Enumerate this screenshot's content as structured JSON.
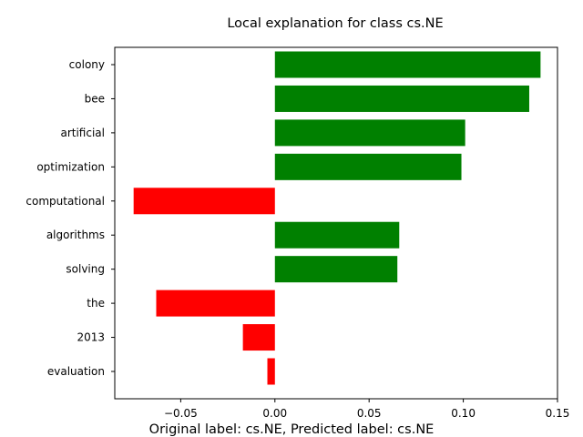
{
  "chart_data": {
    "type": "bar",
    "orientation": "horizontal",
    "title": "Local explanation for class cs.NE",
    "caption": "Original label: cs.NE, Predicted label: cs.NE",
    "xlabel": "",
    "ylabel": "",
    "categories": [
      "colony",
      "bee",
      "artificial",
      "optimization",
      "computational",
      "algorithms",
      "solving",
      "the",
      "2013",
      "evaluation"
    ],
    "values": [
      0.141,
      0.135,
      0.101,
      0.099,
      -0.075,
      0.066,
      0.065,
      -0.063,
      -0.017,
      -0.004
    ],
    "xlim": [
      -0.085,
      0.15
    ],
    "xticks": [
      -0.05,
      0.0,
      0.05,
      0.1,
      0.15
    ],
    "xtick_labels": [
      "−0.05",
      "0.00",
      "0.05",
      "0.10",
      "0.15"
    ],
    "grid": false,
    "legend": "none",
    "colors": {
      "positive": "#008000",
      "negative": "#ff0000",
      "axis": "#000000"
    }
  }
}
